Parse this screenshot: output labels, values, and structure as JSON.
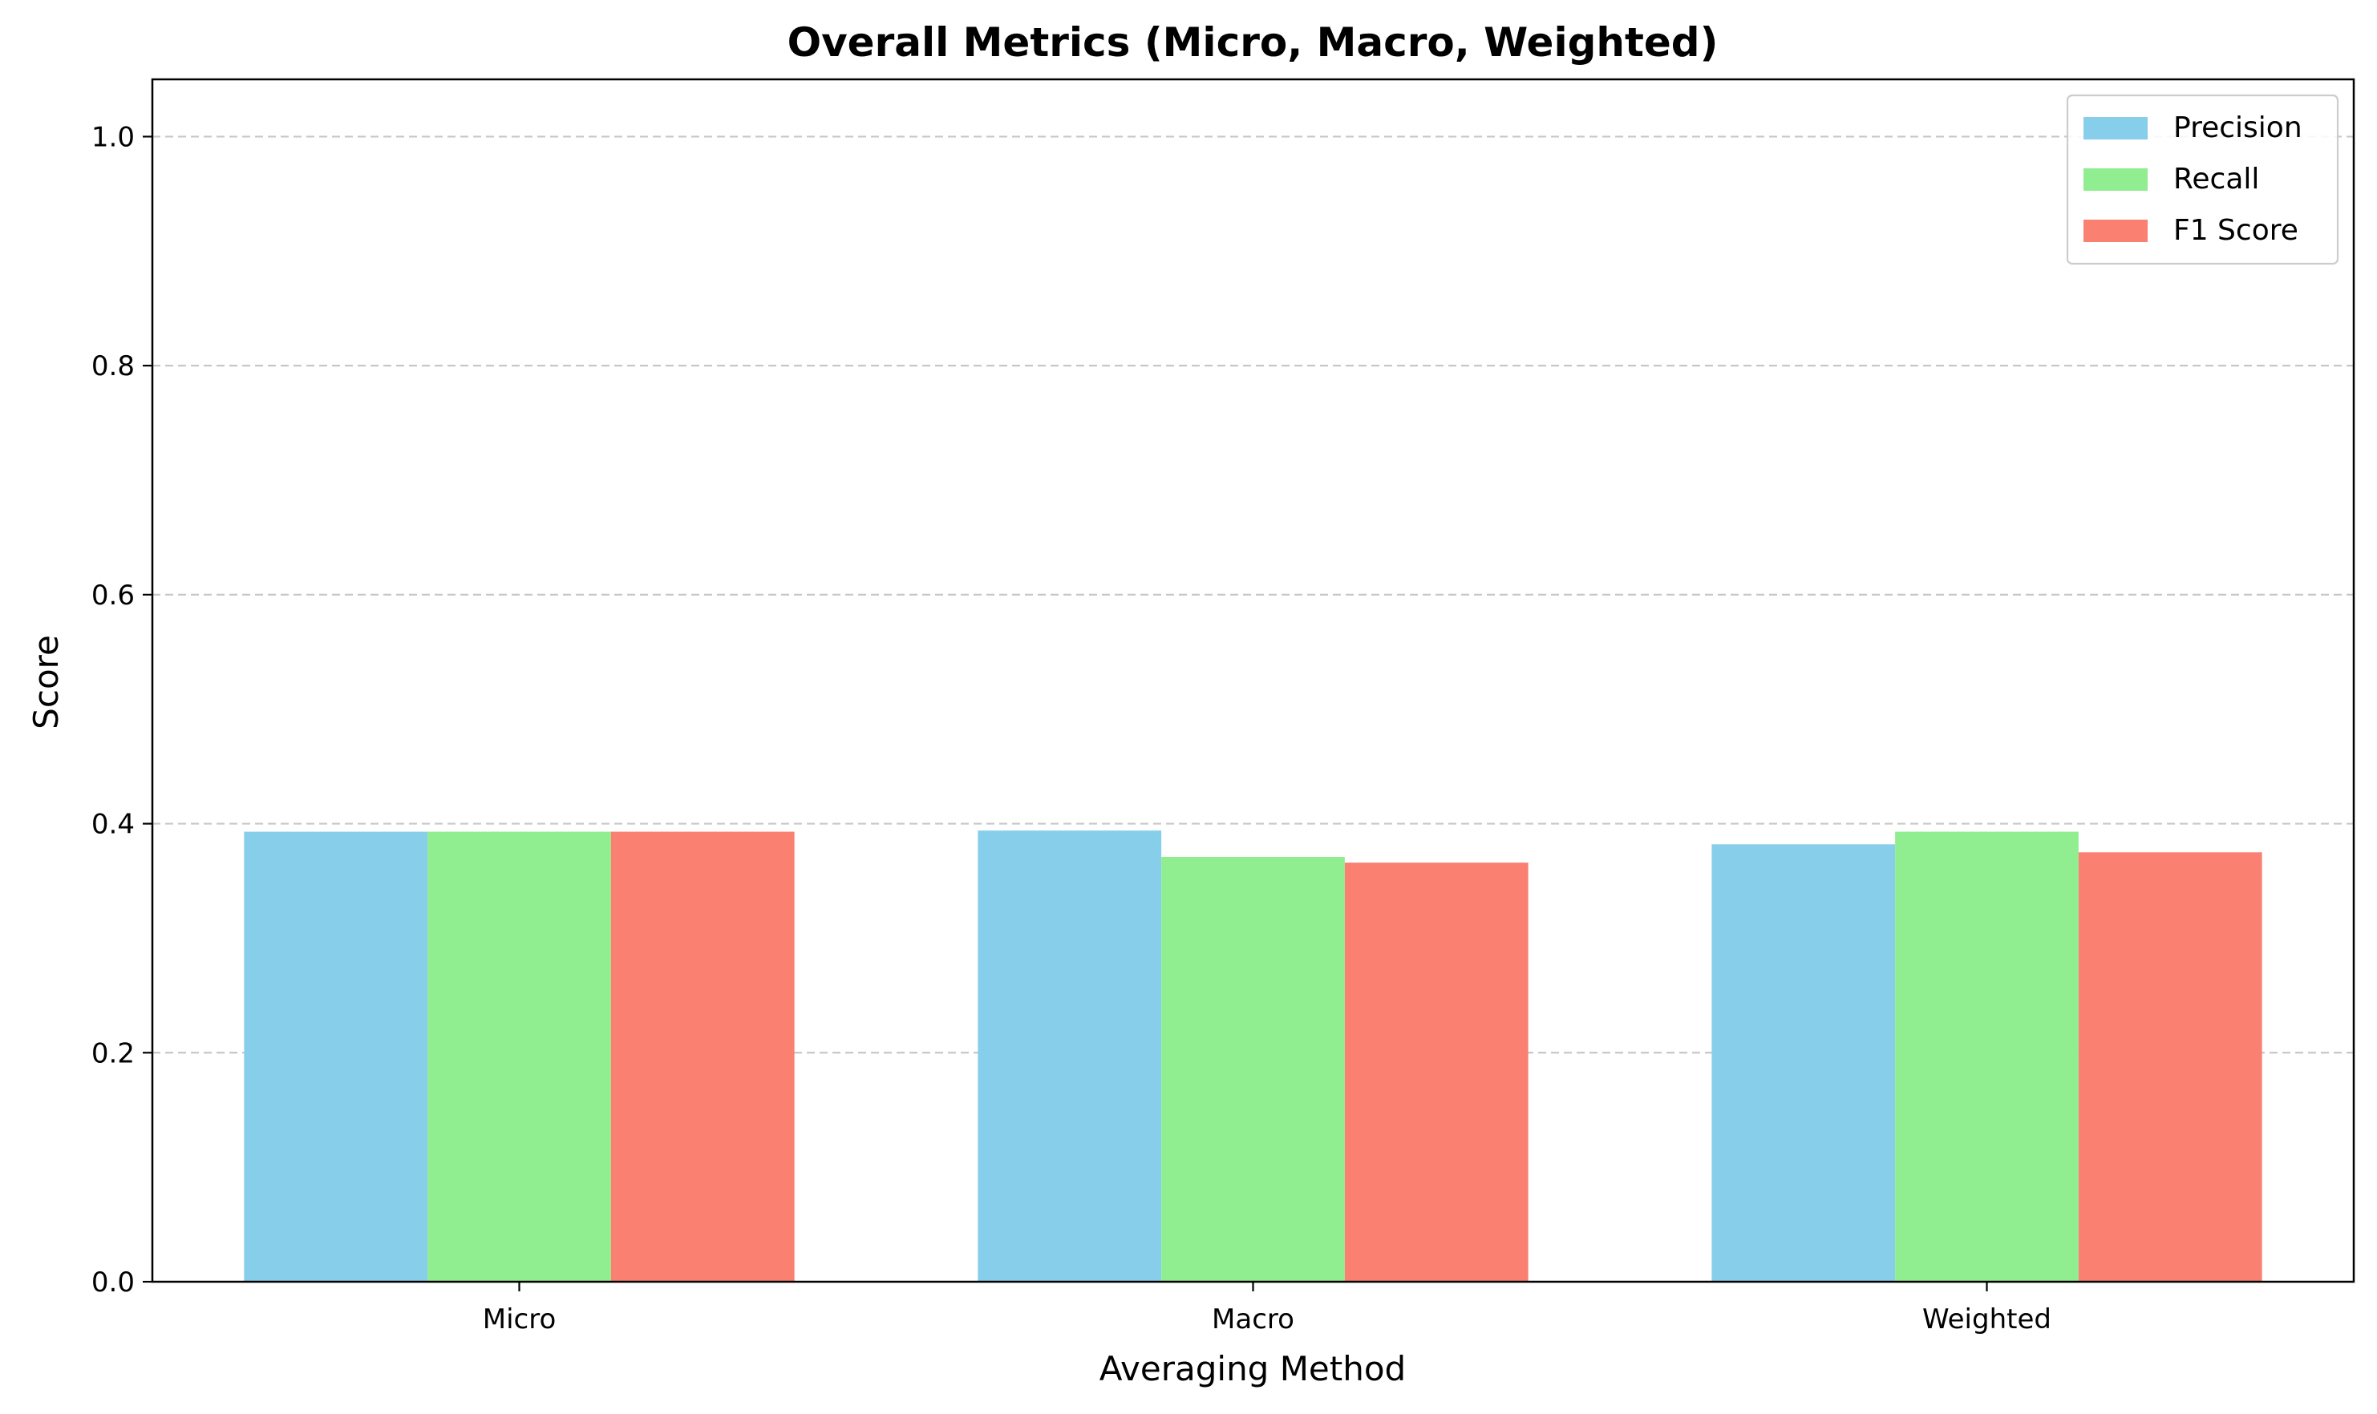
{
  "chart_data": {
    "type": "bar",
    "title": "Overall Metrics (Micro, Macro, Weighted)",
    "xlabel": "Averaging Method",
    "ylabel": "Score",
    "categories": [
      "Micro",
      "Macro",
      "Weighted"
    ],
    "series": [
      {
        "name": "Precision",
        "color": "#87CEEB",
        "values": [
          0.393,
          0.394,
          0.382
        ]
      },
      {
        "name": "Recall",
        "color": "#90EE90",
        "values": [
          0.393,
          0.371,
          0.393
        ]
      },
      {
        "name": "F1 Score",
        "color": "#FA8072",
        "values": [
          0.393,
          0.366,
          0.375
        ]
      }
    ],
    "ylim": [
      0,
      1.05
    ],
    "yticks": [
      0.0,
      0.2,
      0.4,
      0.6,
      0.8,
      1.0
    ],
    "ytick_labels": [
      "0.0",
      "0.2",
      "0.4",
      "0.6",
      "0.8",
      "1.0"
    ],
    "grid": "y-dashed",
    "legend_position": "top-right"
  }
}
